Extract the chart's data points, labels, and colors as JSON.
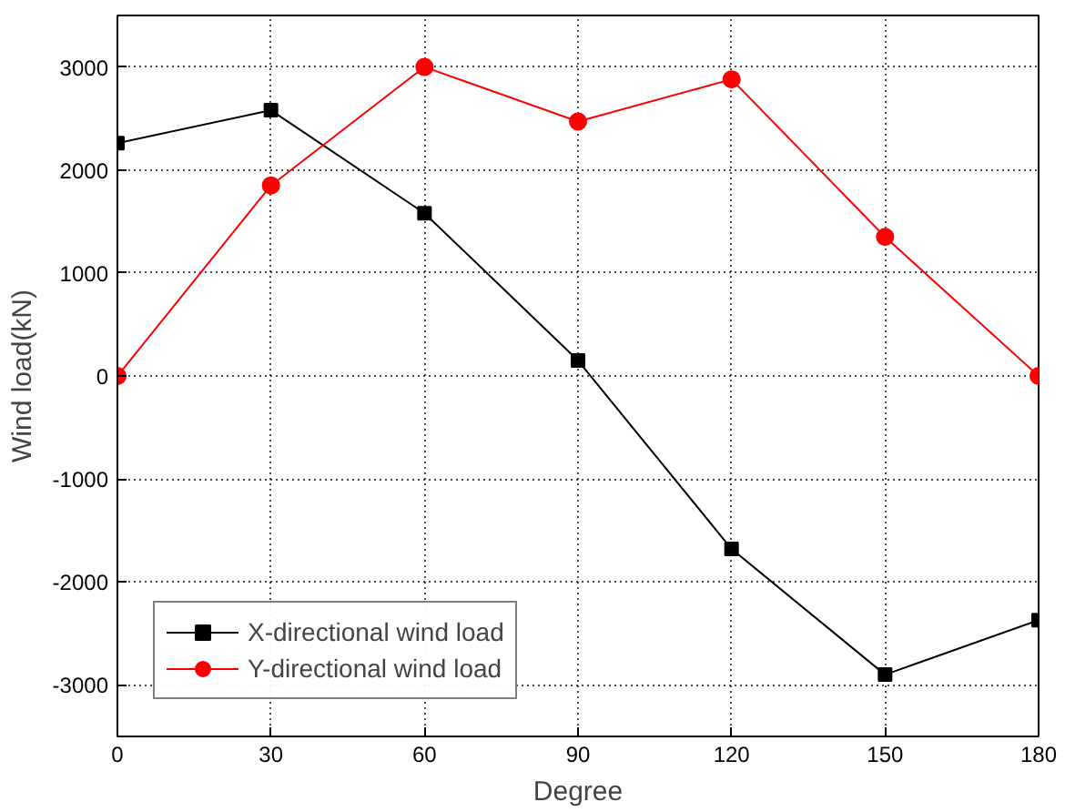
{
  "chart_data": {
    "type": "line",
    "xlabel": "Degree",
    "ylabel": "Wind load(kN)",
    "x": [
      0,
      30,
      60,
      90,
      120,
      150,
      180
    ],
    "xlim": [
      0,
      180
    ],
    "xticks": [
      0,
      30,
      60,
      90,
      120,
      150,
      180
    ],
    "ylim": [
      -3500,
      3500
    ],
    "yticks": [
      -3000,
      -2000,
      -1000,
      0,
      1000,
      2000,
      3000
    ],
    "grid": true,
    "legend": "bottom left",
    "line_style": "solid",
    "series": [
      {
        "name": "X-directional wind load",
        "color": "#000000",
        "marker": "square",
        "values": [
          2260,
          2580,
          1580,
          150,
          -1680,
          -2900,
          -2370
        ]
      },
      {
        "name": "Y-directional wind load",
        "color": "#ff0000",
        "marker": "circle",
        "values": [
          0,
          1850,
          3000,
          2470,
          2880,
          1350,
          0
        ]
      }
    ]
  }
}
